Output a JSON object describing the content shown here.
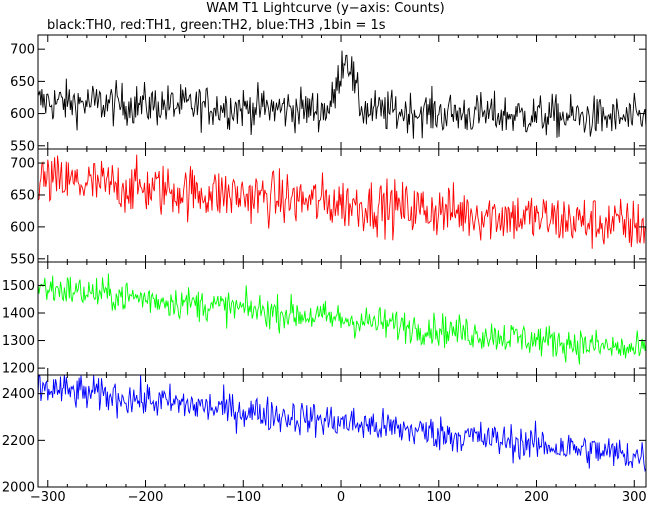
{
  "title": "WAM T1 Lightcurve (y−axis: Counts)",
  "subtitle": "black:TH0, red:TH1, green:TH2, blue:TH3 ,1bin = 1s",
  "chart_data": {
    "type": "line",
    "x": {
      "range": [
        -310,
        312
      ],
      "ticks": [
        -300,
        -200,
        -100,
        0,
        100,
        200,
        300
      ],
      "tick_labels": [
        "−300",
        "−200",
        "−100",
        "0",
        "100",
        "200",
        "300"
      ]
    },
    "panels": [
      {
        "name": "TH0",
        "color": "#000000",
        "ylim": [
          545,
          722
        ],
        "yticks": [
          550,
          600,
          650,
          700
        ],
        "ytick_labels": [
          "550",
          "600",
          "650",
          "700"
        ],
        "trend": [
          {
            "x": -300,
            "y": 618
          },
          {
            "x": 300,
            "y": 592
          }
        ],
        "noise": 22,
        "peak": {
          "x": 5,
          "height": 85,
          "width": 10
        }
      },
      {
        "name": "TH1",
        "color": "#ff0000",
        "ylim": [
          545,
          722
        ],
        "yticks": [
          550,
          600,
          650,
          700
        ],
        "ytick_labels": [
          "550",
          "600",
          "650",
          "700"
        ],
        "trend": [
          {
            "x": -300,
            "y": 672
          },
          {
            "x": 300,
            "y": 602
          }
        ],
        "noise": 28
      },
      {
        "name": "TH2",
        "color": "#00ff00",
        "ylim": [
          1175,
          1585
        ],
        "yticks": [
          1200,
          1300,
          1400,
          1500
        ],
        "ytick_labels": [
          "1200",
          "1300",
          "1400",
          "1500"
        ],
        "trend": [
          {
            "x": -300,
            "y": 1490
          },
          {
            "x": 300,
            "y": 1265
          }
        ],
        "noise": 40
      },
      {
        "name": "TH3",
        "color": "#0000ff",
        "ylim": [
          2000,
          2480
        ],
        "yticks": [
          2000,
          2200,
          2400
        ],
        "ytick_labels": [
          "2000",
          "2200",
          "2400"
        ],
        "trend": [
          {
            "x": -300,
            "y": 2420
          },
          {
            "x": 300,
            "y": 2135
          }
        ],
        "noise": 50
      }
    ]
  }
}
